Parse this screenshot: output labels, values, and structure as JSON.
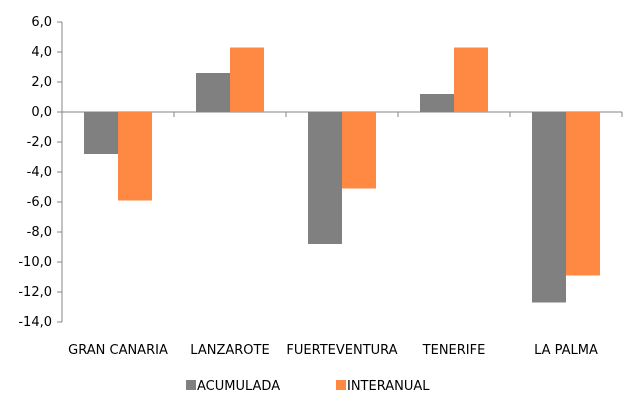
{
  "chart_data": {
    "type": "bar",
    "title": "",
    "xlabel": "",
    "ylabel": "",
    "categories": [
      "GRAN CANARIA",
      "LANZAROTE",
      "FUERTEVENTURA",
      "TENERIFE",
      "LA PALMA"
    ],
    "series": [
      {
        "name": "ACUMULADA",
        "color": "#808080",
        "values": [
          -2.8,
          2.6,
          -8.8,
          1.2,
          -12.7
        ]
      },
      {
        "name": "INTERANUAL",
        "color": "#ff8843",
        "values": [
          -5.9,
          4.3,
          -5.1,
          4.3,
          -10.9
        ]
      }
    ],
    "ylim": [
      -14.0,
      6.0
    ],
    "yticks": [
      6.0,
      4.0,
      2.0,
      0.0,
      -2.0,
      -4.0,
      -6.0,
      -8.0,
      -10.0,
      -12.0,
      -14.0
    ],
    "ytick_labels": [
      "6,0",
      "4,0",
      "2,0",
      "0,0",
      "-2,0",
      "-4,0",
      "-6,0",
      "-8,0",
      "-10,0",
      "-12,0",
      "-14,0"
    ],
    "grid": false,
    "legend_position": "bottom-center"
  }
}
